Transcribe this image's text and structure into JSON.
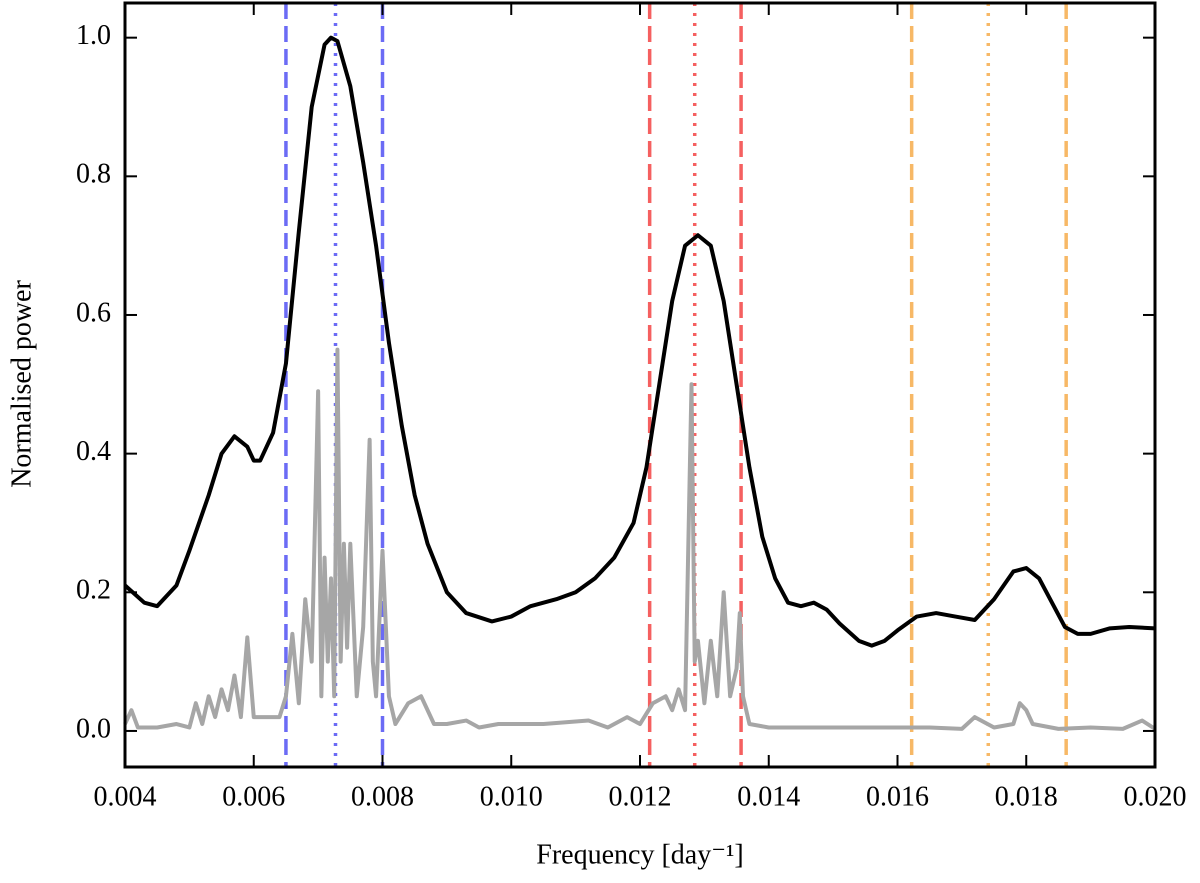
{
  "chart_data": {
    "type": "line",
    "x_label": "Frequency [day⁻¹]",
    "y_label": "Normalised power",
    "xlim": [
      0.004,
      0.02
    ],
    "ylim": [
      -0.052,
      1.05
    ],
    "xticks": [
      0.004,
      0.006,
      0.008,
      {
        "value": 0.01,
        "label": "0.010"
      },
      0.012,
      0.014,
      0.016,
      0.018,
      {
        "value": 0.02,
        "label": "0.020"
      }
    ],
    "yticks": [
      {
        "value": 0,
        "label": "0.0"
      },
      0.2,
      0.4,
      0.6,
      0.8,
      {
        "value": 1,
        "label": "1.0"
      }
    ],
    "series": [
      {
        "color": "#a6a6a6",
        "x": [
          0.004,
          0.0041,
          0.0042,
          0.0045,
          0.0048,
          0.005,
          0.0051,
          0.0052,
          0.0053,
          0.0054,
          0.0055,
          0.0056,
          0.0057,
          0.0058,
          0.0059,
          0.006,
          0.0062,
          0.0064,
          0.0065,
          0.0066,
          0.0067,
          0.0068,
          0.0069,
          0.007,
          0.00705,
          0.0071,
          0.00715,
          0.0072,
          0.00725,
          0.0073,
          0.00735,
          0.0074,
          0.00745,
          0.0075,
          0.0076,
          0.0077,
          0.0078,
          0.00785,
          0.0079,
          0.008,
          0.0081,
          0.0082,
          0.0084,
          0.0086,
          0.0088,
          0.009,
          0.0093,
          0.0095,
          0.0098,
          0.0105,
          0.0112,
          0.0115,
          0.0118,
          0.012,
          0.0122,
          0.0124,
          0.0125,
          0.0126,
          0.0127,
          0.0128,
          0.01285,
          0.0129,
          0.013,
          0.0131,
          0.0132,
          0.0133,
          0.0134,
          0.0135,
          0.01355,
          0.0136,
          0.0137,
          0.014,
          0.0145,
          0.015,
          0.0155,
          0.016,
          0.0165,
          0.017,
          0.0172,
          0.0175,
          0.0178,
          0.0179,
          0.018,
          0.0181,
          0.0185,
          0.019,
          0.0195,
          0.0198,
          0.02
        ],
        "values": [
          0.01,
          0.03,
          0.005,
          0.005,
          0.01,
          0.005,
          0.04,
          0.01,
          0.05,
          0.02,
          0.06,
          0.03,
          0.08,
          0.02,
          0.135,
          0.02,
          0.02,
          0.02,
          0.05,
          0.14,
          0.04,
          0.19,
          0.1,
          0.49,
          0.05,
          0.25,
          0.1,
          0.22,
          0.05,
          0.55,
          0.1,
          0.27,
          0.12,
          0.27,
          0.05,
          0.15,
          0.42,
          0.1,
          0.05,
          0.26,
          0.05,
          0.01,
          0.04,
          0.05,
          0.01,
          0.01,
          0.015,
          0.005,
          0.01,
          0.01,
          0.015,
          0.005,
          0.02,
          0.01,
          0.04,
          0.05,
          0.03,
          0.06,
          0.03,
          0.5,
          0.1,
          0.13,
          0.04,
          0.13,
          0.05,
          0.2,
          0.05,
          0.09,
          0.17,
          0.05,
          0.01,
          0.005,
          0.005,
          0.005,
          0.005,
          0.005,
          0.005,
          0.003,
          0.02,
          0.005,
          0.01,
          0.04,
          0.03,
          0.01,
          0.003,
          0.005,
          0.003,
          0.015,
          0.003
        ]
      },
      {
        "color": "#000000",
        "x": [
          0.004,
          0.0043,
          0.0045,
          0.0048,
          0.005,
          0.0053,
          0.0055,
          0.0057,
          0.0059,
          0.006,
          0.0061,
          0.0063,
          0.0065,
          0.0067,
          0.0069,
          0.0071,
          0.0072,
          0.0073,
          0.0075,
          0.0077,
          0.0079,
          0.0081,
          0.0083,
          0.0085,
          0.0087,
          0.009,
          0.0093,
          0.0097,
          0.01,
          0.0103,
          0.0107,
          0.011,
          0.0113,
          0.0116,
          0.0119,
          0.0121,
          0.0123,
          0.0125,
          0.0127,
          0.0129,
          0.0131,
          0.0133,
          0.0135,
          0.0137,
          0.0139,
          0.0141,
          0.0143,
          0.0145,
          0.0147,
          0.0149,
          0.0151,
          0.0154,
          0.0156,
          0.0158,
          0.016,
          0.0163,
          0.0166,
          0.0169,
          0.0172,
          0.0175,
          0.0178,
          0.018,
          0.0182,
          0.0184,
          0.0186,
          0.0188,
          0.019,
          0.0193,
          0.0196,
          0.02
        ],
        "values": [
          0.21,
          0.185,
          0.18,
          0.21,
          0.26,
          0.34,
          0.4,
          0.425,
          0.41,
          0.39,
          0.39,
          0.43,
          0.53,
          0.72,
          0.9,
          0.99,
          1.0,
          0.995,
          0.93,
          0.82,
          0.7,
          0.56,
          0.44,
          0.34,
          0.27,
          0.2,
          0.17,
          0.158,
          0.165,
          0.18,
          0.19,
          0.2,
          0.22,
          0.25,
          0.3,
          0.38,
          0.5,
          0.62,
          0.7,
          0.715,
          0.7,
          0.62,
          0.5,
          0.38,
          0.28,
          0.22,
          0.185,
          0.18,
          0.185,
          0.175,
          0.155,
          0.13,
          0.123,
          0.13,
          0.145,
          0.165,
          0.17,
          0.165,
          0.16,
          0.19,
          0.23,
          0.235,
          0.22,
          0.185,
          0.15,
          0.14,
          0.14,
          0.148,
          0.15,
          0.148
        ]
      }
    ],
    "vlines": [
      {
        "x": 0.0065,
        "color": "#6b6bf5",
        "style": "dashed"
      },
      {
        "x": 0.00727,
        "color": "#6b6bf5",
        "style": "dotted"
      },
      {
        "x": 0.008,
        "color": "#6b6bf5",
        "style": "dashed"
      },
      {
        "x": 0.01215,
        "color": "#f56060",
        "style": "dashed"
      },
      {
        "x": 0.01285,
        "color": "#f56060",
        "style": "dotted"
      },
      {
        "x": 0.01357,
        "color": "#f56060",
        "style": "dashed"
      },
      {
        "x": 0.01622,
        "color": "#f7b866",
        "style": "dashed"
      },
      {
        "x": 0.01741,
        "color": "#f7b866",
        "style": "dotted"
      },
      {
        "x": 0.01862,
        "color": "#f7b866",
        "style": "dashed"
      }
    ]
  }
}
